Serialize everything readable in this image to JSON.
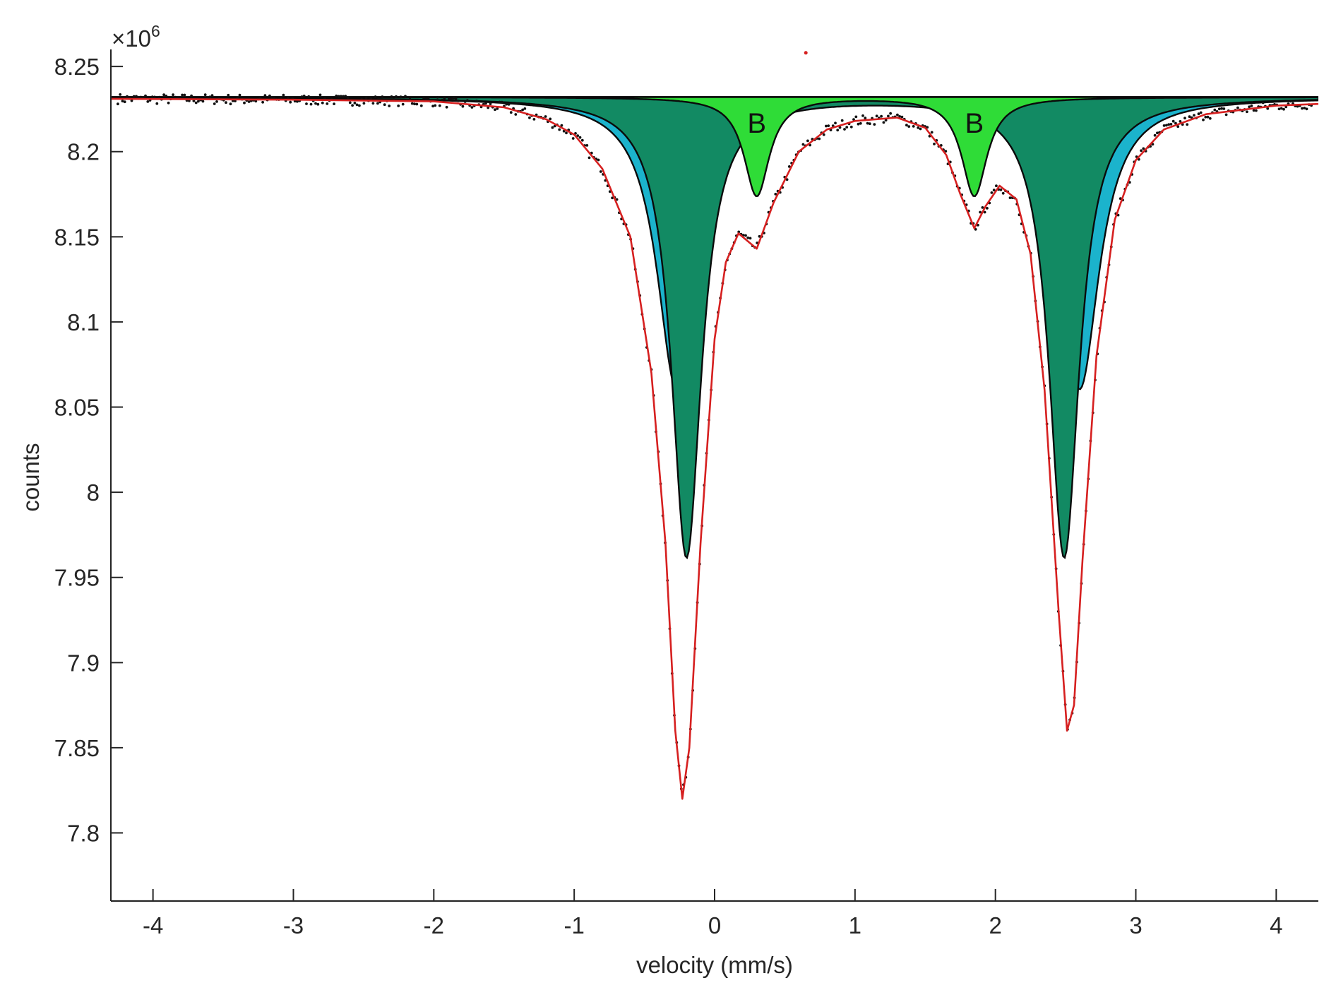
{
  "chart_data": {
    "type": "line",
    "xlabel": "velocity (mm/s)",
    "ylabel": "counts",
    "y_multiplier_base": "×10",
    "y_multiplier_exp": "6",
    "xlim": [
      -4.3,
      4.3
    ],
    "ylim": [
      7.76,
      8.26
    ],
    "xticks": [
      -4,
      -3,
      -2,
      -1,
      0,
      1,
      2,
      3,
      4
    ],
    "yticks": [
      7.8,
      7.85,
      7.9,
      7.95,
      8,
      8.05,
      8.1,
      8.15,
      8.2,
      8.25
    ],
    "grid": false,
    "baseline": 8.232,
    "components": [
      {
        "role": "doublet",
        "fill": "#1bb3cc",
        "peaks": [
          {
            "center": -0.27,
            "depth": 0.171,
            "hwhm": 0.17
          },
          {
            "center": 2.6,
            "depth": 0.171,
            "hwhm": 0.17
          }
        ]
      },
      {
        "role": "doublet",
        "fill": "#128a63",
        "peaks": [
          {
            "center": -0.2,
            "depth": 0.27,
            "hwhm": 0.13
          },
          {
            "center": 2.49,
            "depth": 0.27,
            "hwhm": 0.13
          }
        ]
      },
      {
        "role": "doublet",
        "label": "B",
        "fill": "#2fdc37",
        "peaks": [
          {
            "center": 0.3,
            "depth": 0.058,
            "hwhm": 0.11
          },
          {
            "center": 1.85,
            "depth": 0.058,
            "hwhm": 0.11
          }
        ]
      }
    ],
    "fit": {
      "color": "#d62020",
      "samples": [
        {
          "x": -4.3,
          "y": 8.231
        },
        {
          "x": -3.0,
          "y": 8.2305
        },
        {
          "x": -2.0,
          "y": 8.2295
        },
        {
          "x": -1.5,
          "y": 8.226
        },
        {
          "x": -1.2,
          "y": 8.219
        },
        {
          "x": -1.0,
          "y": 8.21
        },
        {
          "x": -0.8,
          "y": 8.19
        },
        {
          "x": -0.6,
          "y": 8.15
        },
        {
          "x": -0.45,
          "y": 8.07
        },
        {
          "x": -0.35,
          "y": 7.97
        },
        {
          "x": -0.28,
          "y": 7.86
        },
        {
          "x": -0.23,
          "y": 7.82
        },
        {
          "x": -0.18,
          "y": 7.85
        },
        {
          "x": -0.1,
          "y": 7.97
        },
        {
          "x": 0.0,
          "y": 8.09
        },
        {
          "x": 0.08,
          "y": 8.135
        },
        {
          "x": 0.17,
          "y": 8.152
        },
        {
          "x": 0.3,
          "y": 8.143
        },
        {
          "x": 0.42,
          "y": 8.17
        },
        {
          "x": 0.6,
          "y": 8.2
        },
        {
          "x": 0.8,
          "y": 8.213
        },
        {
          "x": 1.0,
          "y": 8.218
        },
        {
          "x": 1.3,
          "y": 8.22
        },
        {
          "x": 1.5,
          "y": 8.214
        },
        {
          "x": 1.65,
          "y": 8.198
        },
        {
          "x": 1.75,
          "y": 8.175
        },
        {
          "x": 1.85,
          "y": 8.155
        },
        {
          "x": 1.93,
          "y": 8.168
        },
        {
          "x": 2.03,
          "y": 8.18
        },
        {
          "x": 2.15,
          "y": 8.172
        },
        {
          "x": 2.25,
          "y": 8.14
        },
        {
          "x": 2.35,
          "y": 8.06
        },
        {
          "x": 2.45,
          "y": 7.93
        },
        {
          "x": 2.51,
          "y": 7.86
        },
        {
          "x": 2.56,
          "y": 7.875
        },
        {
          "x": 2.62,
          "y": 7.96
        },
        {
          "x": 2.72,
          "y": 8.08
        },
        {
          "x": 2.85,
          "y": 8.16
        },
        {
          "x": 3.0,
          "y": 8.195
        },
        {
          "x": 3.2,
          "y": 8.213
        },
        {
          "x": 3.5,
          "y": 8.222
        },
        {
          "x": 4.0,
          "y": 8.227
        },
        {
          "x": 4.3,
          "y": 8.228
        }
      ]
    },
    "stray_point": {
      "x": 0.65,
      "y": 8.258,
      "color": "#d62020"
    }
  }
}
